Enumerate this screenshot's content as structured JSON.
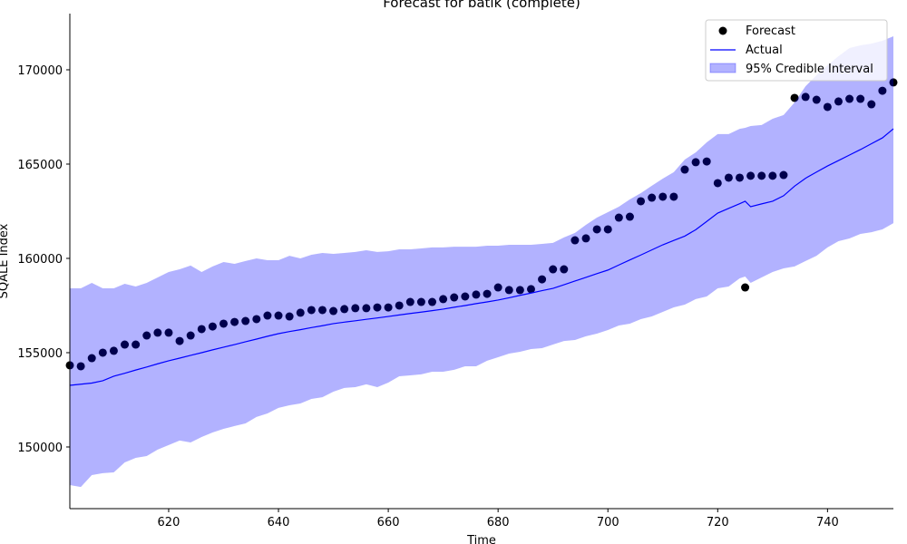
{
  "chart_data": {
    "type": "line",
    "title": "Forecast for batik (complete)",
    "xlabel": "Time",
    "ylabel": "SQALE Index",
    "x": [
      602,
      604,
      606,
      608,
      610,
      612,
      614,
      616,
      618,
      620,
      622,
      624,
      626,
      628,
      630,
      632,
      634,
      636,
      638,
      640,
      642,
      644,
      646,
      648,
      650,
      652,
      654,
      656,
      658,
      660,
      662,
      664,
      666,
      668,
      670,
      672,
      674,
      676,
      678,
      680,
      682,
      684,
      686,
      688,
      690,
      692,
      694,
      696,
      698,
      700,
      702,
      704,
      706,
      708,
      710,
      712,
      714,
      716,
      718,
      720,
      722,
      724,
      725,
      726,
      728,
      730,
      732,
      734,
      736,
      738,
      740,
      742,
      744,
      746,
      748,
      750,
      752
    ],
    "series": [
      {
        "name": "Forecast",
        "mode": "markers",
        "color": "#000000",
        "values": [
          154330,
          154280,
          154710,
          155000,
          155100,
          155430,
          155430,
          155910,
          156060,
          156060,
          155620,
          155910,
          156250,
          156390,
          156540,
          156630,
          156680,
          156780,
          156970,
          156970,
          156920,
          157120,
          157260,
          157260,
          157210,
          157310,
          157360,
          157360,
          157400,
          157400,
          157500,
          157690,
          157690,
          157690,
          157840,
          157930,
          157980,
          158080,
          158120,
          158460,
          158320,
          158320,
          158370,
          158890,
          159420,
          159420,
          160960,
          161060,
          161540,
          161540,
          162160,
          162210,
          163030,
          163220,
          163270,
          163270,
          164710,
          165100,
          165140,
          163990,
          164280,
          164280,
          158460,
          164380,
          164380,
          164380,
          164420,
          168510,
          168560,
          168410,
          168030,
          168320,
          168460,
          168460,
          168170,
          168890,
          169330
        ]
      },
      {
        "name": "Actual",
        "mode": "line",
        "color": "#0000ff",
        "values": [
          153270,
          153330,
          153390,
          153510,
          153750,
          153910,
          154080,
          154240,
          154410,
          154570,
          154710,
          154860,
          155000,
          155150,
          155290,
          155430,
          155580,
          155720,
          155870,
          156010,
          156120,
          156220,
          156330,
          156430,
          156540,
          156620,
          156690,
          156770,
          156840,
          156920,
          157000,
          157080,
          157150,
          157230,
          157310,
          157410,
          157500,
          157600,
          157690,
          157790,
          157910,
          158040,
          158160,
          158290,
          158410,
          158600,
          158800,
          158990,
          159190,
          159380,
          159650,
          159920,
          160180,
          160450,
          160720,
          160950,
          161180,
          161520,
          161960,
          162400,
          162650,
          162900,
          163030,
          162740,
          162890,
          163030,
          163320,
          163830,
          164250,
          164580,
          164900,
          165190,
          165480,
          165770,
          166080,
          166390,
          166870
        ]
      }
    ],
    "interval": {
      "name": "95% Credible Interval",
      "color": "#0000ff",
      "alpha": 0.3,
      "lower": [
        147980,
        147880,
        148510,
        148610,
        148650,
        149180,
        149420,
        149520,
        149860,
        150100,
        150340,
        150240,
        150530,
        150770,
        150960,
        151110,
        151250,
        151590,
        151780,
        152070,
        152210,
        152310,
        152550,
        152640,
        152930,
        153130,
        153170,
        153320,
        153170,
        153410,
        153750,
        153800,
        153850,
        153990,
        153990,
        154090,
        154280,
        154280,
        154570,
        154760,
        154950,
        155050,
        155190,
        155240,
        155430,
        155620,
        155670,
        155870,
        156010,
        156200,
        156440,
        156540,
        156780,
        156920,
        157160,
        157400,
        157550,
        157840,
        157980,
        158410,
        158510,
        158940,
        159040,
        158700,
        158990,
        159280,
        159470,
        159570,
        159860,
        160140,
        160580,
        160910,
        161060,
        161300,
        161390,
        161540,
        161870
      ],
      "upper": [
        158410,
        158410,
        158700,
        158410,
        158410,
        158650,
        158510,
        158700,
        158990,
        159280,
        159420,
        159620,
        159280,
        159570,
        159810,
        159710,
        159860,
        160000,
        159900,
        159900,
        160140,
        160000,
        160190,
        160290,
        160240,
        160290,
        160340,
        160430,
        160340,
        160380,
        160480,
        160480,
        160530,
        160580,
        160580,
        160620,
        160620,
        160620,
        160670,
        160670,
        160720,
        160720,
        160720,
        160770,
        160820,
        161110,
        161350,
        161780,
        162160,
        162450,
        162740,
        163130,
        163460,
        163850,
        164230,
        164570,
        165240,
        165620,
        166150,
        166590,
        166590,
        166870,
        166920,
        167020,
        167070,
        167400,
        167600,
        168270,
        169130,
        169710,
        170240,
        170720,
        171150,
        171300,
        171390,
        171540,
        171780
      ]
    },
    "xlim": [
      602,
      752
    ],
    "ylim": [
      146730,
      172980
    ],
    "xticks": [
      620,
      640,
      660,
      680,
      700,
      720,
      740
    ],
    "yticks": [
      150000,
      155000,
      160000,
      165000,
      170000
    ],
    "legend": "upper right"
  }
}
